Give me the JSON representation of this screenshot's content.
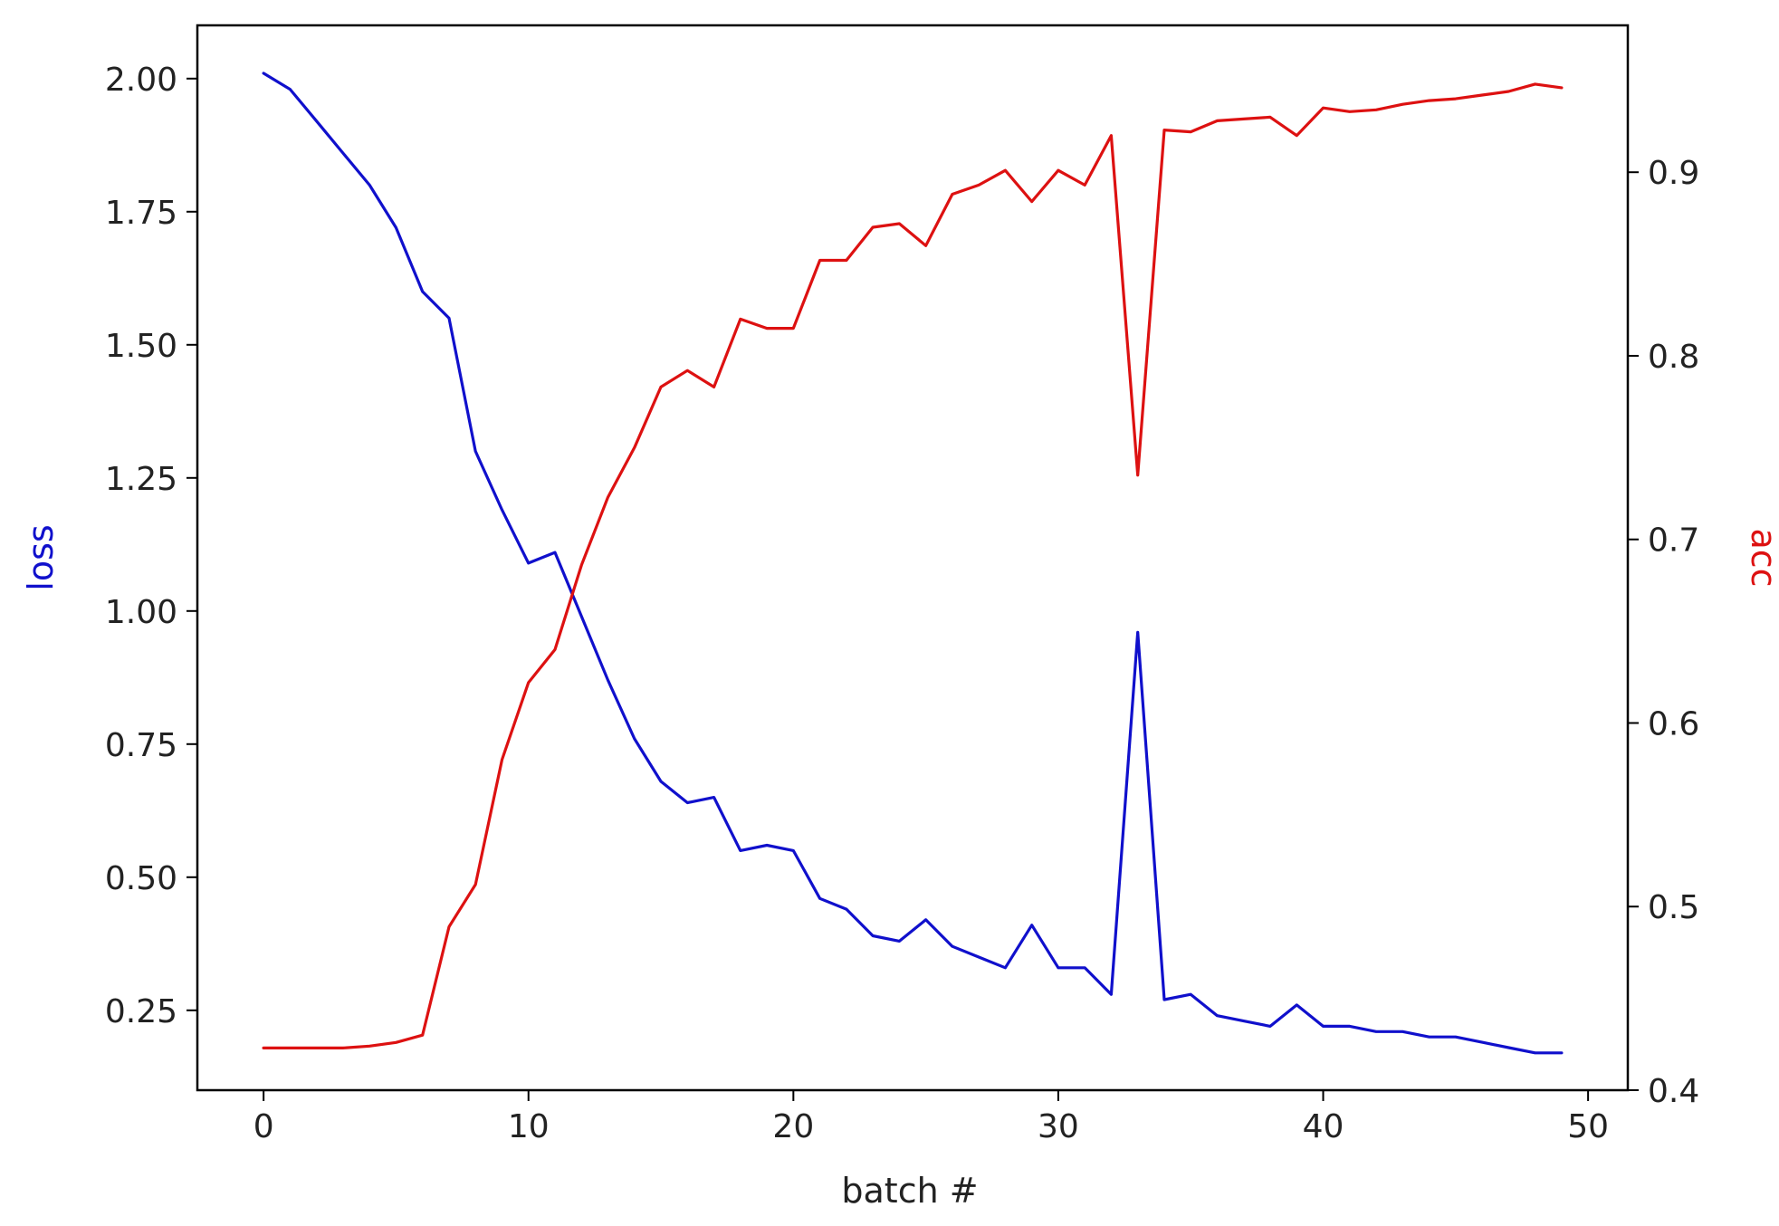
{
  "chart_data": {
    "type": "line",
    "title": "",
    "xlabel": "batch #",
    "ylabel_left": "loss",
    "ylabel_right": "acc",
    "xlim": [
      -2.5,
      51.5
    ],
    "ylim_left": [
      0.1,
      2.1
    ],
    "ylim_right": [
      0.4,
      0.98
    ],
    "x_ticks": [
      0,
      10,
      20,
      30,
      40,
      50
    ],
    "y_left_ticks": [
      "0.25",
      "0.50",
      "0.75",
      "1.00",
      "1.25",
      "1.50",
      "1.75",
      "2.00"
    ],
    "y_right_ticks": [
      "0.4",
      "0.5",
      "0.6",
      "0.7",
      "0.8",
      "0.9"
    ],
    "grid": false,
    "legend": "none",
    "x": [
      0,
      1,
      2,
      3,
      4,
      5,
      6,
      7,
      8,
      9,
      10,
      11,
      12,
      13,
      14,
      15,
      16,
      17,
      18,
      19,
      20,
      21,
      22,
      23,
      24,
      25,
      26,
      27,
      28,
      29,
      30,
      31,
      32,
      33,
      34,
      35,
      36,
      37,
      38,
      39,
      40,
      41,
      42,
      43,
      44,
      45,
      46,
      47,
      48,
      49
    ],
    "series": [
      {
        "name": "loss",
        "axis": "left",
        "color": "#1010cc",
        "values": [
          2.01,
          1.98,
          1.92,
          1.86,
          1.8,
          1.72,
          1.6,
          1.55,
          1.3,
          1.19,
          1.09,
          1.11,
          0.99,
          0.87,
          0.76,
          0.68,
          0.64,
          0.65,
          0.55,
          0.56,
          0.55,
          0.46,
          0.44,
          0.39,
          0.38,
          0.42,
          0.37,
          0.35,
          0.33,
          0.41,
          0.33,
          0.33,
          0.28,
          0.96,
          0.27,
          0.28,
          0.24,
          0.23,
          0.22,
          0.26,
          0.22,
          0.22,
          0.21,
          0.21,
          0.2,
          0.2,
          0.19,
          0.18,
          0.17,
          0.17
        ]
      },
      {
        "name": "acc",
        "axis": "right",
        "color": "#dd1111",
        "values": [
          0.423,
          0.423,
          0.423,
          0.423,
          0.424,
          0.426,
          0.43,
          0.489,
          0.512,
          0.58,
          0.622,
          0.64,
          0.686,
          0.723,
          0.75,
          0.783,
          0.792,
          0.783,
          0.82,
          0.815,
          0.815,
          0.852,
          0.852,
          0.87,
          0.872,
          0.86,
          0.888,
          0.893,
          0.901,
          0.884,
          0.901,
          0.893,
          0.92,
          0.735,
          0.923,
          0.922,
          0.928,
          0.929,
          0.93,
          0.92,
          0.935,
          0.933,
          0.934,
          0.937,
          0.939,
          0.94,
          0.942,
          0.944,
          0.948,
          0.946
        ]
      }
    ]
  }
}
